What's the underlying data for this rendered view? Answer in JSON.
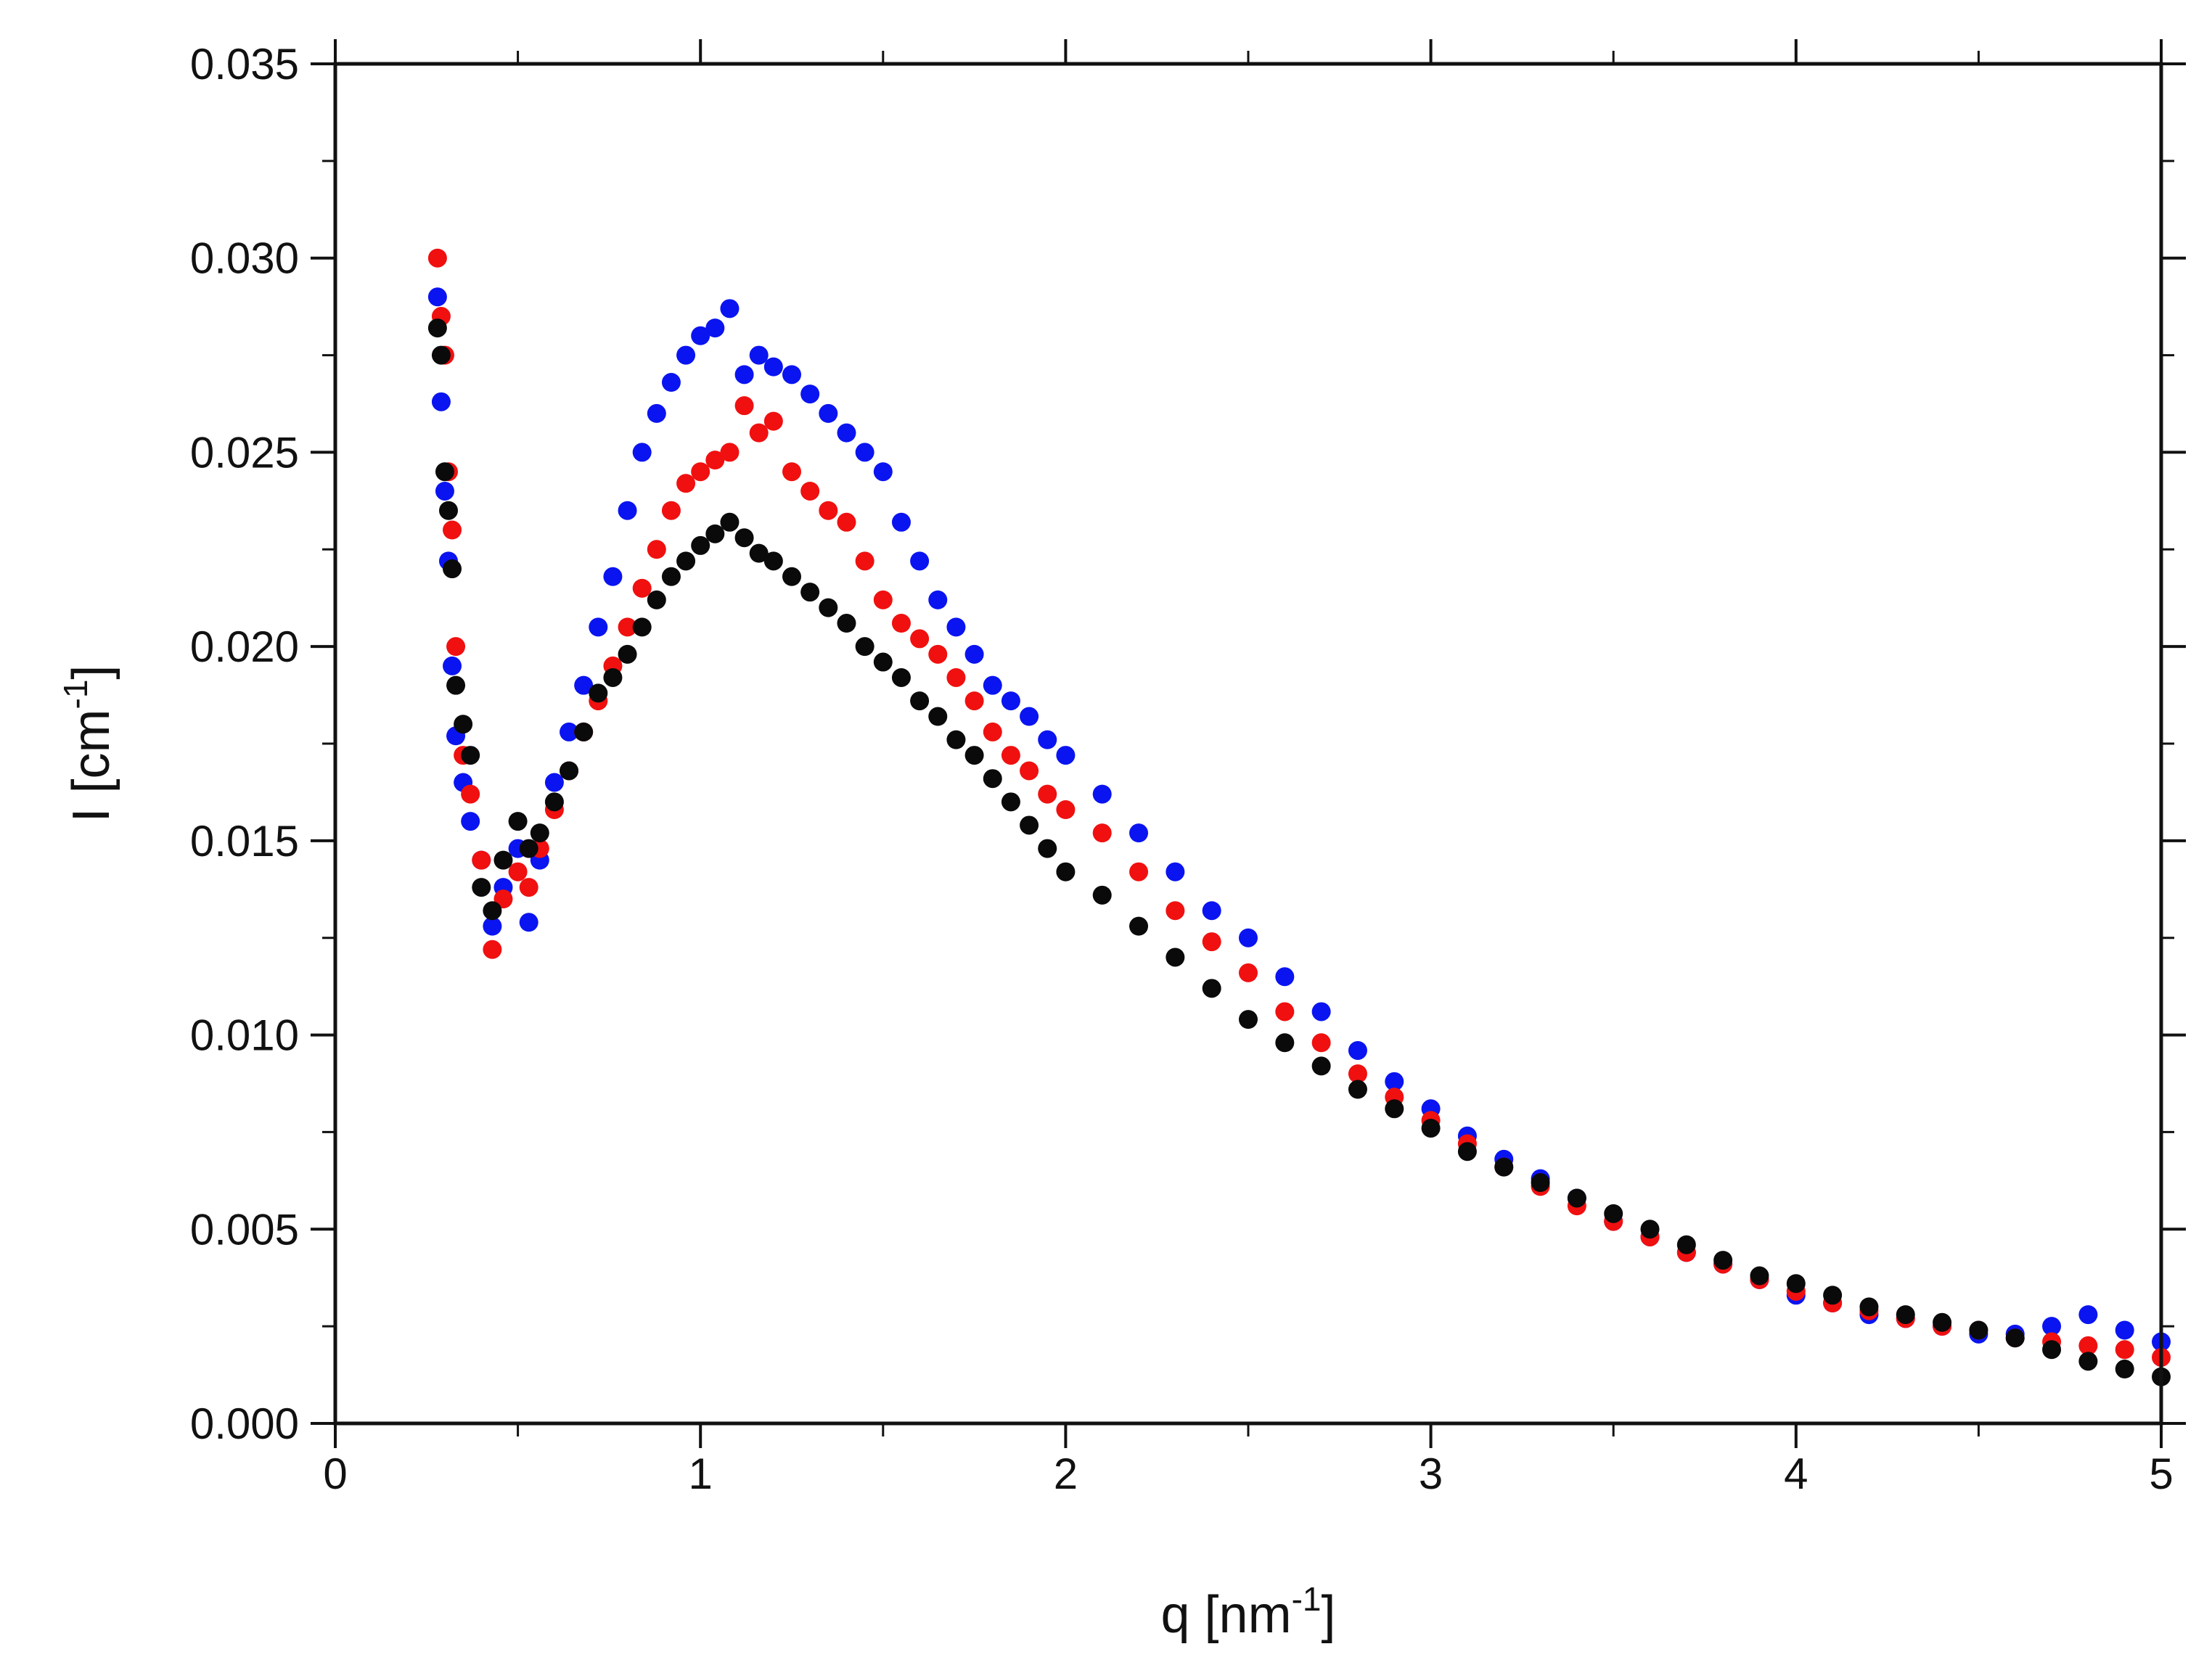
{
  "chart_data": {
    "type": "scatter",
    "title": "",
    "xlabel": {
      "base": "q [nm",
      "sup": "-1",
      "end": "]"
    },
    "ylabel": {
      "base": "I [cm",
      "sup": "-1",
      "end": "]"
    },
    "xlim": [
      0,
      5
    ],
    "ylim": [
      0,
      0.035
    ],
    "x_major_ticks": [
      0,
      1,
      2,
      3,
      4,
      5
    ],
    "x_tick_labels": [
      "0",
      "1",
      "2",
      "3",
      "4",
      "5"
    ],
    "y_major_ticks": [
      0,
      0.005,
      0.01,
      0.015,
      0.02,
      0.025,
      0.03,
      0.035
    ],
    "y_tick_labels": [
      "0.000",
      "0.005",
      "0.010",
      "0.015",
      "0.020",
      "0.025",
      "0.030",
      "0.035"
    ],
    "x_minor_step": 0.5,
    "y_minor_step": 0.0025,
    "grid": false,
    "legend": "none",
    "series": [
      {
        "name": "blue",
        "color": "#0a14f0",
        "x": [
          0.28,
          0.29,
          0.3,
          0.31,
          0.32,
          0.33,
          0.35,
          0.37,
          0.4,
          0.43,
          0.46,
          0.5,
          0.53,
          0.56,
          0.6,
          0.64,
          0.68,
          0.72,
          0.76,
          0.8,
          0.84,
          0.88,
          0.92,
          0.96,
          1.0,
          1.04,
          1.08,
          1.12,
          1.16,
          1.2,
          1.25,
          1.3,
          1.35,
          1.4,
          1.45,
          1.5,
          1.55,
          1.6,
          1.65,
          1.7,
          1.75,
          1.8,
          1.85,
          1.9,
          1.95,
          2.0,
          2.1,
          2.2,
          2.3,
          2.4,
          2.5,
          2.6,
          2.7,
          2.8,
          2.9,
          3.0,
          3.1,
          3.2,
          3.3,
          3.4,
          3.5,
          3.6,
          3.7,
          3.8,
          3.9,
          4.0,
          4.1,
          4.2,
          4.3,
          4.4,
          4.5,
          4.6,
          4.7,
          4.8,
          4.9,
          5.0
        ],
        "y": [
          0.029,
          0.0263,
          0.024,
          0.0222,
          0.0195,
          0.0177,
          0.0165,
          0.0155,
          0.0145,
          0.0128,
          0.0138,
          0.0148,
          0.0129,
          0.0145,
          0.0165,
          0.0178,
          0.019,
          0.0205,
          0.0218,
          0.0235,
          0.025,
          0.026,
          0.0268,
          0.0275,
          0.028,
          0.0282,
          0.0287,
          0.027,
          0.0275,
          0.0272,
          0.027,
          0.0265,
          0.026,
          0.0255,
          0.025,
          0.0245,
          0.0232,
          0.0222,
          0.0212,
          0.0205,
          0.0198,
          0.019,
          0.0186,
          0.0182,
          0.0176,
          0.0172,
          0.0162,
          0.0152,
          0.0142,
          0.0132,
          0.0125,
          0.0115,
          0.0106,
          0.0096,
          0.0088,
          0.0081,
          0.0074,
          0.0068,
          0.0063,
          0.0058,
          0.0052,
          0.0048,
          0.0044,
          0.0041,
          0.0037,
          0.0033,
          0.0031,
          0.0028,
          0.0027,
          0.0025,
          0.0023,
          0.0023,
          0.0025,
          0.0028,
          0.0024,
          0.0021
        ]
      },
      {
        "name": "red",
        "color": "#f01010",
        "x": [
          0.28,
          0.29,
          0.3,
          0.31,
          0.32,
          0.33,
          0.35,
          0.37,
          0.4,
          0.43,
          0.46,
          0.5,
          0.53,
          0.56,
          0.6,
          0.64,
          0.68,
          0.72,
          0.76,
          0.8,
          0.84,
          0.88,
          0.92,
          0.96,
          1.0,
          1.04,
          1.08,
          1.12,
          1.16,
          1.2,
          1.25,
          1.3,
          1.35,
          1.4,
          1.45,
          1.5,
          1.55,
          1.6,
          1.65,
          1.7,
          1.75,
          1.8,
          1.85,
          1.9,
          1.95,
          2.0,
          2.1,
          2.2,
          2.3,
          2.4,
          2.5,
          2.6,
          2.7,
          2.8,
          2.9,
          3.0,
          3.1,
          3.2,
          3.3,
          3.4,
          3.5,
          3.6,
          3.7,
          3.8,
          3.9,
          4.0,
          4.1,
          4.2,
          4.3,
          4.4,
          4.5,
          4.6,
          4.7,
          4.8,
          4.9,
          5.0
        ],
        "y": [
          0.03,
          0.0285,
          0.0275,
          0.0245,
          0.023,
          0.02,
          0.0172,
          0.0162,
          0.0145,
          0.0122,
          0.0135,
          0.0142,
          0.0138,
          0.0148,
          0.0158,
          0.0168,
          0.0178,
          0.0186,
          0.0195,
          0.0205,
          0.0215,
          0.0225,
          0.0235,
          0.0242,
          0.0245,
          0.0248,
          0.025,
          0.0262,
          0.0255,
          0.0258,
          0.0245,
          0.024,
          0.0235,
          0.0232,
          0.0222,
          0.0212,
          0.0206,
          0.0202,
          0.0198,
          0.0192,
          0.0186,
          0.0178,
          0.0172,
          0.0168,
          0.0162,
          0.0158,
          0.0152,
          0.0142,
          0.0132,
          0.0124,
          0.0116,
          0.0106,
          0.0098,
          0.009,
          0.0084,
          0.0078,
          0.0072,
          0.0066,
          0.0061,
          0.0056,
          0.0052,
          0.0048,
          0.0044,
          0.0041,
          0.0037,
          0.0034,
          0.0031,
          0.0029,
          0.0027,
          0.0025,
          0.0024,
          0.0022,
          0.0021,
          0.002,
          0.0019,
          0.0017
        ]
      },
      {
        "name": "black",
        "color": "#0a0a0a",
        "x": [
          0.28,
          0.29,
          0.3,
          0.31,
          0.32,
          0.33,
          0.35,
          0.37,
          0.4,
          0.43,
          0.46,
          0.5,
          0.53,
          0.56,
          0.6,
          0.64,
          0.68,
          0.72,
          0.76,
          0.8,
          0.84,
          0.88,
          0.92,
          0.96,
          1.0,
          1.04,
          1.08,
          1.12,
          1.16,
          1.2,
          1.25,
          1.3,
          1.35,
          1.4,
          1.45,
          1.5,
          1.55,
          1.6,
          1.65,
          1.7,
          1.75,
          1.8,
          1.85,
          1.9,
          1.95,
          2.0,
          2.1,
          2.2,
          2.3,
          2.4,
          2.5,
          2.6,
          2.7,
          2.8,
          2.9,
          3.0,
          3.1,
          3.2,
          3.3,
          3.4,
          3.5,
          3.6,
          3.7,
          3.8,
          3.9,
          4.0,
          4.1,
          4.2,
          4.3,
          4.4,
          4.5,
          4.6,
          4.7,
          4.8,
          4.9,
          5.0
        ],
        "y": [
          0.0282,
          0.0275,
          0.0245,
          0.0235,
          0.022,
          0.019,
          0.018,
          0.0172,
          0.0138,
          0.0132,
          0.0145,
          0.0155,
          0.0148,
          0.0152,
          0.016,
          0.0168,
          0.0178,
          0.0188,
          0.0192,
          0.0198,
          0.0205,
          0.0212,
          0.0218,
          0.0222,
          0.0226,
          0.0229,
          0.0232,
          0.0228,
          0.0224,
          0.0222,
          0.0218,
          0.0214,
          0.021,
          0.0206,
          0.02,
          0.0196,
          0.0192,
          0.0186,
          0.0182,
          0.0176,
          0.0172,
          0.0166,
          0.016,
          0.0154,
          0.0148,
          0.0142,
          0.0136,
          0.0128,
          0.012,
          0.0112,
          0.0104,
          0.0098,
          0.0092,
          0.0086,
          0.0081,
          0.0076,
          0.007,
          0.0066,
          0.0062,
          0.0058,
          0.0054,
          0.005,
          0.0046,
          0.0042,
          0.0038,
          0.0036,
          0.0033,
          0.003,
          0.0028,
          0.0026,
          0.0024,
          0.0022,
          0.0019,
          0.0016,
          0.0014,
          0.0012
        ]
      }
    ]
  }
}
